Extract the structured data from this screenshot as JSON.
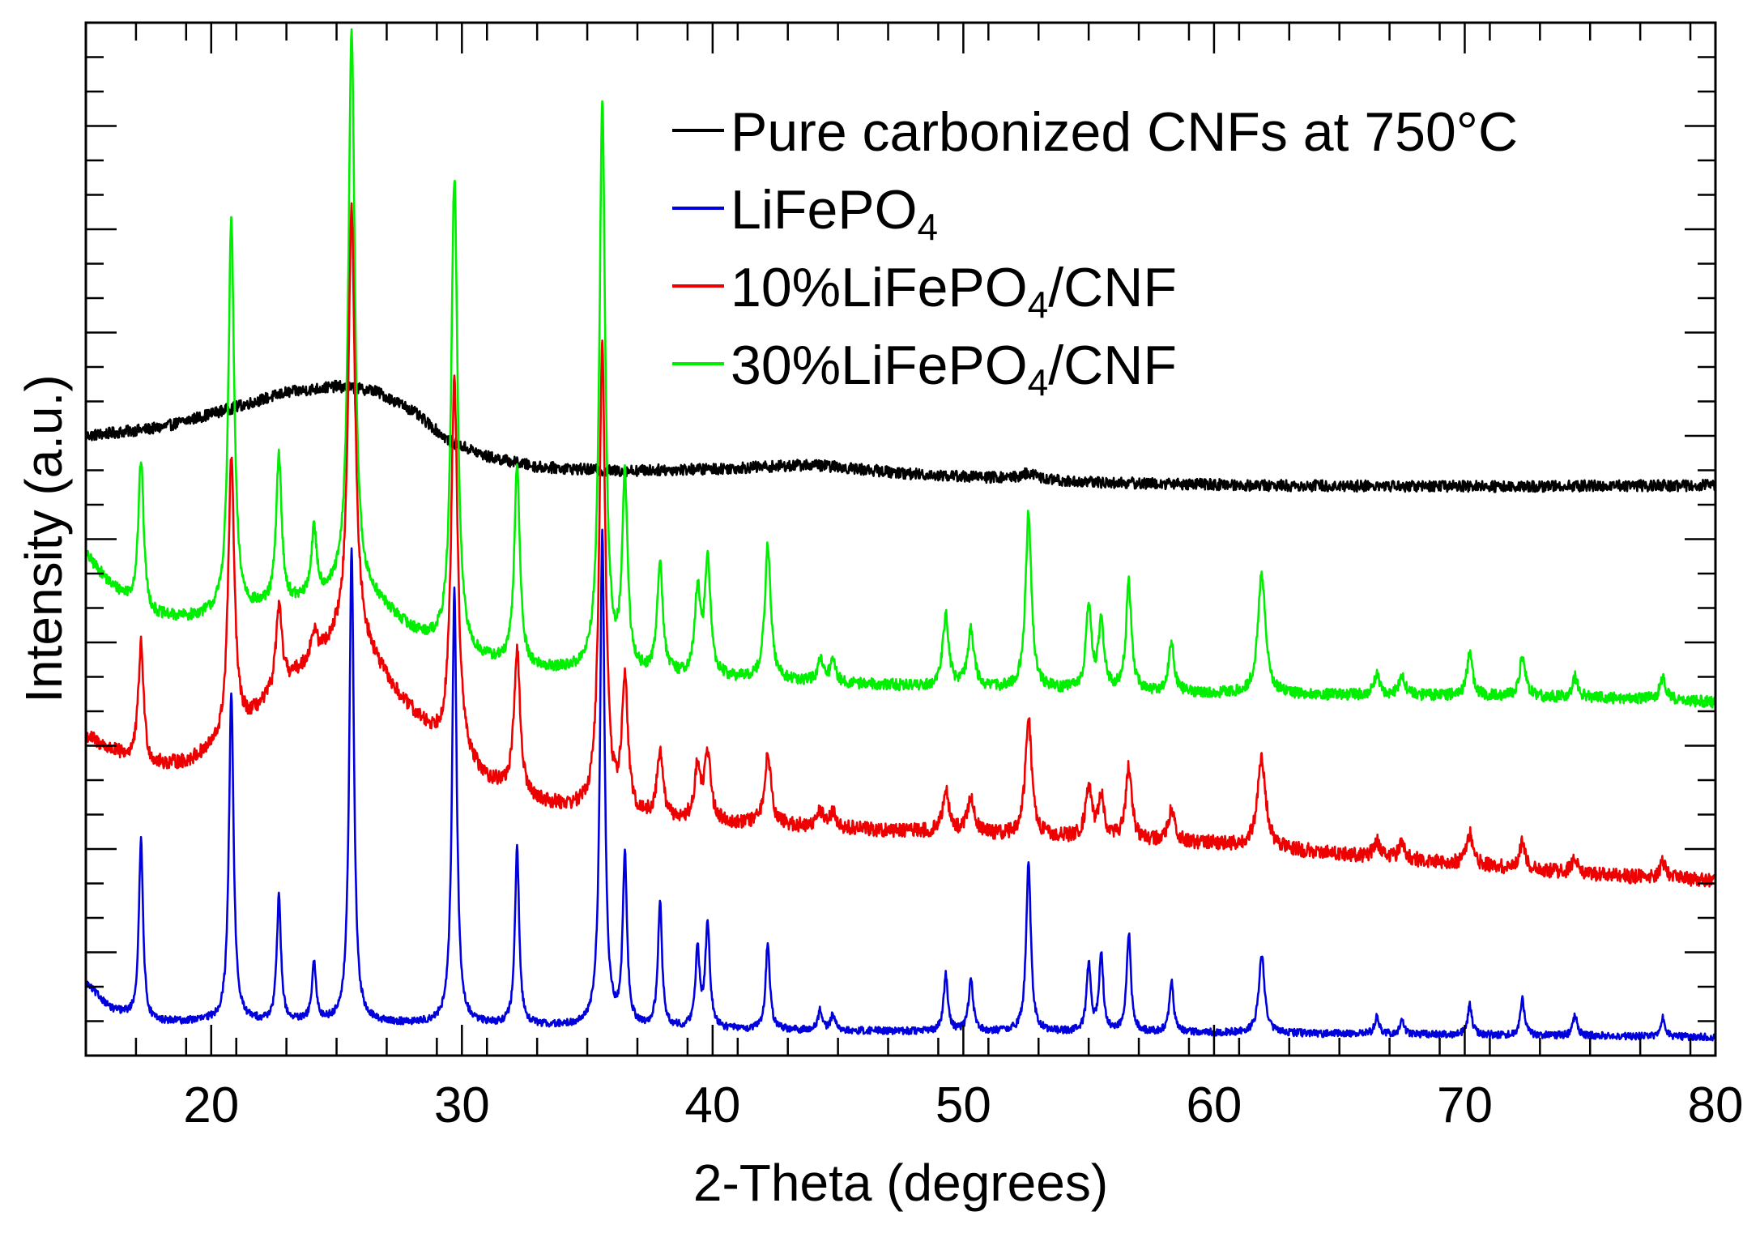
{
  "chart_data": {
    "type": "line",
    "title": "",
    "xlabel": "2-Theta (degrees)",
    "ylabel": "Intensity (a.u.)",
    "xlim": [
      15,
      80
    ],
    "ylim": [
      0,
      100
    ],
    "y_tick_labels_shown": false,
    "x_ticks": [
      20,
      30,
      40,
      50,
      60,
      70,
      80
    ],
    "x_tick_labels": [
      "20",
      "30",
      "40",
      "50",
      "60",
      "70",
      "80"
    ],
    "grid": false,
    "legend_position": "top-right",
    "legend": [
      {
        "series": "cnf",
        "label_main": "Pure carbonized CNFs at 750°C",
        "label_sub": "",
        "label_tail": ""
      },
      {
        "series": "lfp",
        "label_main": "LiFePO",
        "label_sub": "4",
        "label_tail": ""
      },
      {
        "series": "lfp10",
        "label_main": "10%LiFePO",
        "label_sub": "4",
        "label_tail": "/CNF"
      },
      {
        "series": "lfp30",
        "label_main": "30%LiFePO",
        "label_sub": "4",
        "label_tail": "/CNF"
      }
    ],
    "colors": {
      "cnf": "#000000",
      "lfp": "#0000dd",
      "lfp10": "#ee0000",
      "lfp30": "#00ee00"
    },
    "series": [
      {
        "id": "cnf",
        "name": "Pure carbonized CNFs at 750°C",
        "color": "#000000",
        "noise": 0.55,
        "baseline": [
          [
            15,
            60.0
          ],
          [
            18,
            60.8
          ],
          [
            21,
            62.8
          ],
          [
            23,
            64.2
          ],
          [
            25,
            64.8
          ],
          [
            26.5,
            64.4
          ],
          [
            28,
            62.5
          ],
          [
            29.5,
            59.5
          ],
          [
            31,
            58.0
          ],
          [
            33,
            57.0
          ],
          [
            36,
            56.6
          ],
          [
            40,
            56.8
          ],
          [
            44,
            57.2
          ],
          [
            48,
            56.3
          ],
          [
            55,
            55.5
          ],
          [
            62,
            55.2
          ],
          [
            70,
            55.1
          ],
          [
            80,
            55.2
          ]
        ],
        "peaks": [
          [
            52.6,
            0.6,
            0.4
          ]
        ]
      },
      {
        "id": "lfp30",
        "name": "30%LiFePO4/CNF",
        "color": "#00ee00",
        "noise": 0.55,
        "baseline": [
          [
            15,
            48.5
          ],
          [
            16,
            45.5
          ],
          [
            17.5,
            42.5
          ],
          [
            19,
            42.3
          ],
          [
            21,
            42.8
          ],
          [
            23,
            43.5
          ],
          [
            25,
            44.5
          ],
          [
            26.5,
            44.0
          ],
          [
            28,
            41.0
          ],
          [
            30,
            38.5
          ],
          [
            33,
            37.3
          ],
          [
            36,
            36.8
          ],
          [
            40,
            36.5
          ],
          [
            45,
            36.0
          ],
          [
            50,
            35.6
          ],
          [
            55,
            35.3
          ],
          [
            60,
            35.0
          ],
          [
            70,
            34.8
          ],
          [
            78,
            34.5
          ],
          [
            80,
            34.2
          ]
        ],
        "peaks": [
          [
            17.2,
            14.5,
            0.13
          ],
          [
            20.8,
            38.0,
            0.14
          ],
          [
            22.7,
            14.5,
            0.13
          ],
          [
            24.1,
            6.5,
            0.13
          ],
          [
            25.6,
            55.0,
            0.15
          ],
          [
            29.7,
            46.0,
            0.15
          ],
          [
            32.2,
            19.5,
            0.13
          ],
          [
            35.6,
            55.0,
            0.14
          ],
          [
            36.5,
            18.5,
            0.13
          ],
          [
            37.9,
            11.0,
            0.13
          ],
          [
            39.4,
            8.0,
            0.13
          ],
          [
            39.8,
            11.0,
            0.14
          ],
          [
            42.2,
            13.0,
            0.14
          ],
          [
            44.3,
            2.0,
            0.14
          ],
          [
            44.8,
            2.0,
            0.14
          ],
          [
            49.3,
            7.0,
            0.14
          ],
          [
            50.3,
            5.5,
            0.15
          ],
          [
            52.6,
            17.0,
            0.14
          ],
          [
            55.0,
            8.0,
            0.13
          ],
          [
            55.5,
            6.5,
            0.13
          ],
          [
            56.6,
            10.5,
            0.13
          ],
          [
            58.3,
            4.5,
            0.14
          ],
          [
            61.9,
            11.5,
            0.18
          ],
          [
            66.5,
            2.0,
            0.14
          ],
          [
            67.5,
            2.0,
            0.14
          ],
          [
            70.2,
            4.0,
            0.14
          ],
          [
            72.3,
            4.0,
            0.14
          ],
          [
            74.4,
            2.0,
            0.14
          ],
          [
            77.9,
            2.0,
            0.14
          ]
        ]
      },
      {
        "id": "lfp10",
        "name": "10%LiFePO4/CNF",
        "color": "#ee0000",
        "noise": 0.7,
        "baseline": [
          [
            15,
            31.0
          ],
          [
            16,
            29.5
          ],
          [
            17.5,
            28.0
          ],
          [
            19,
            28.3
          ],
          [
            20.5,
            30.0
          ],
          [
            22,
            33.5
          ],
          [
            23.5,
            37.0
          ],
          [
            25,
            40.0
          ],
          [
            26,
            39.8
          ],
          [
            27.5,
            34.5
          ],
          [
            29,
            30.5
          ],
          [
            31,
            26.5
          ],
          [
            33,
            24.5
          ],
          [
            36,
            23.0
          ],
          [
            40,
            22.5
          ],
          [
            45,
            22.0
          ],
          [
            50,
            21.5
          ],
          [
            55,
            21.0
          ],
          [
            60,
            20.5
          ],
          [
            65,
            19.5
          ],
          [
            70,
            18.5
          ],
          [
            75,
            17.5
          ],
          [
            80,
            17.0
          ]
        ],
        "peaks": [
          [
            17.2,
            11.5,
            0.13
          ],
          [
            20.8,
            27.0,
            0.15
          ],
          [
            22.7,
            8.0,
            0.15
          ],
          [
            24.1,
            2.5,
            0.15
          ],
          [
            25.6,
            42.0,
            0.16
          ],
          [
            29.7,
            36.0,
            0.16
          ],
          [
            32.2,
            14.0,
            0.14
          ],
          [
            35.6,
            45.0,
            0.15
          ],
          [
            36.5,
            13.0,
            0.14
          ],
          [
            37.9,
            6.5,
            0.14
          ],
          [
            39.4,
            5.0,
            0.14
          ],
          [
            39.8,
            6.5,
            0.15
          ],
          [
            42.2,
            7.0,
            0.15
          ],
          [
            44.3,
            1.5,
            0.15
          ],
          [
            44.8,
            1.5,
            0.15
          ],
          [
            49.3,
            4.0,
            0.15
          ],
          [
            50.3,
            3.5,
            0.16
          ],
          [
            52.6,
            11.5,
            0.15
          ],
          [
            55.0,
            5.0,
            0.14
          ],
          [
            55.5,
            4.0,
            0.14
          ],
          [
            56.6,
            7.0,
            0.14
          ],
          [
            58.3,
            3.0,
            0.15
          ],
          [
            61.9,
            8.5,
            0.2
          ],
          [
            66.5,
            1.5,
            0.15
          ],
          [
            67.5,
            1.5,
            0.15
          ],
          [
            70.2,
            3.0,
            0.15
          ],
          [
            72.3,
            2.5,
            0.15
          ],
          [
            74.4,
            1.5,
            0.15
          ],
          [
            77.9,
            1.5,
            0.15
          ]
        ]
      },
      {
        "id": "lfp",
        "name": "LiFePO4",
        "color": "#0000dd",
        "noise": 0.35,
        "baseline": [
          [
            15,
            7.0
          ],
          [
            16,
            4.5
          ],
          [
            17.5,
            3.2
          ],
          [
            20,
            3.3
          ],
          [
            30,
            3.0
          ],
          [
            40,
            2.5
          ],
          [
            50,
            2.3
          ],
          [
            60,
            2.2
          ],
          [
            70,
            2.0
          ],
          [
            80,
            1.8
          ]
        ],
        "peaks": [
          [
            17.2,
            17.5,
            0.1
          ],
          [
            20.8,
            32.0,
            0.11
          ],
          [
            22.7,
            12.0,
            0.1
          ],
          [
            24.1,
            5.5,
            0.1
          ],
          [
            25.6,
            46.0,
            0.11
          ],
          [
            29.7,
            42.0,
            0.11
          ],
          [
            32.2,
            17.0,
            0.1
          ],
          [
            35.6,
            48.0,
            0.11
          ],
          [
            36.5,
            16.5,
            0.1
          ],
          [
            37.9,
            12.0,
            0.1
          ],
          [
            39.4,
            7.5,
            0.1
          ],
          [
            39.8,
            10.0,
            0.11
          ],
          [
            42.2,
            8.5,
            0.1
          ],
          [
            44.3,
            2.0,
            0.1
          ],
          [
            44.8,
            1.5,
            0.1
          ],
          [
            49.3,
            5.5,
            0.1
          ],
          [
            50.3,
            5.0,
            0.11
          ],
          [
            52.6,
            16.5,
            0.11
          ],
          [
            55.0,
            6.5,
            0.1
          ],
          [
            55.5,
            7.5,
            0.1
          ],
          [
            56.6,
            9.5,
            0.1
          ],
          [
            58.3,
            5.0,
            0.1
          ],
          [
            61.9,
            7.5,
            0.14
          ],
          [
            66.5,
            1.8,
            0.1
          ],
          [
            67.5,
            1.5,
            0.1
          ],
          [
            70.2,
            3.0,
            0.1
          ],
          [
            72.3,
            3.5,
            0.1
          ],
          [
            74.4,
            2.0,
            0.1
          ],
          [
            77.9,
            1.8,
            0.1
          ]
        ]
      }
    ]
  }
}
